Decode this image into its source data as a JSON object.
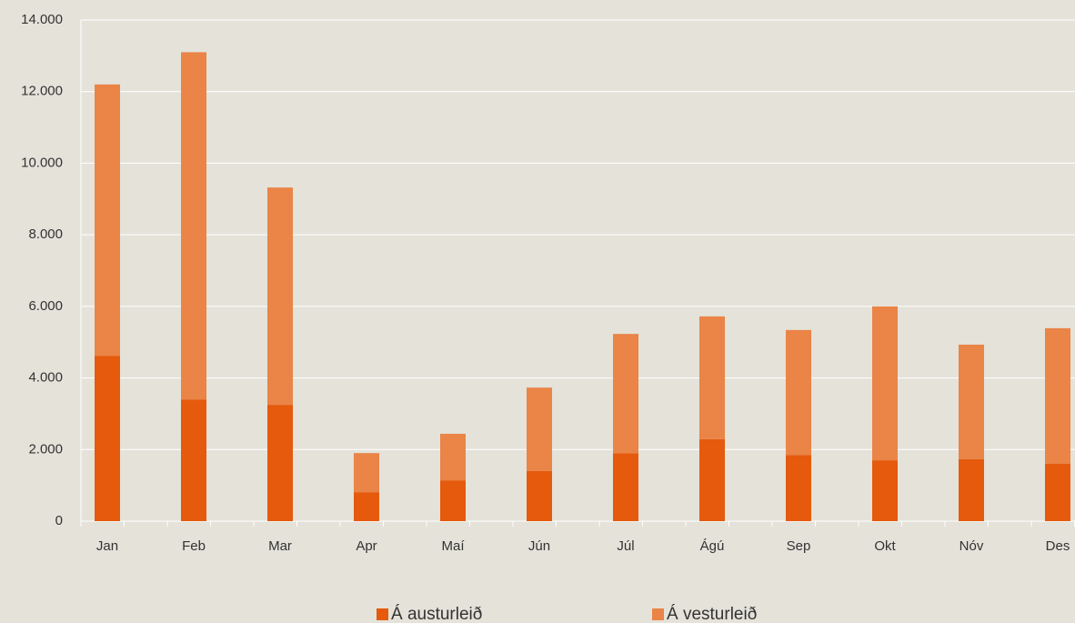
{
  "chart_data": {
    "type": "stacked_bar",
    "categories": [
      "Jan",
      "Feb",
      "Mar",
      "Apr",
      "Maí",
      "Jún",
      "Júl",
      "Ágú",
      "Sep",
      "Okt",
      "Nóv",
      "Des"
    ],
    "series": [
      {
        "name": "Á austurleið",
        "color": "#e55a0c",
        "values": [
          4620,
          3400,
          3250,
          810,
          1140,
          1400,
          1900,
          2290,
          1850,
          1700,
          1730,
          1600
        ]
      },
      {
        "name": "Á vesturleið",
        "color": "#ea8447",
        "values": [
          7580,
          9700,
          6070,
          1090,
          1300,
          2330,
          3330,
          3430,
          3490,
          4300,
          3200,
          3790
        ]
      }
    ],
    "ylim": [
      0,
      14000
    ],
    "yticks": [
      0,
      {
        "value": 2000,
        "label": "2.000"
      },
      {
        "value": 4000,
        "label": "4.000"
      },
      {
        "value": 6000,
        "label": "6.000"
      },
      {
        "value": 8000,
        "label": "8.000"
      },
      {
        "value": 10000,
        "label": "10.000"
      },
      {
        "value": 12000,
        "label": "12.000"
      },
      {
        "value": 14000,
        "label": "14.000"
      }
    ],
    "grid": true,
    "legend": "bottom"
  }
}
